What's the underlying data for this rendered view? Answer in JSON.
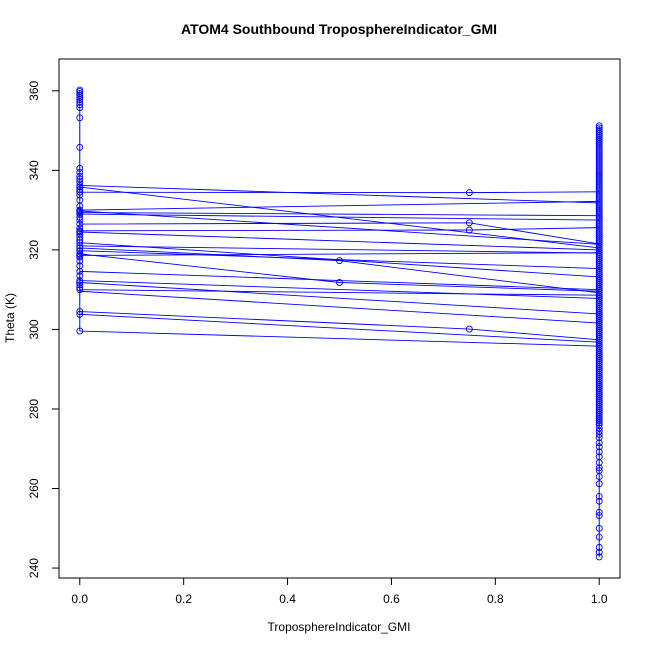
{
  "chart_data": {
    "type": "line",
    "title": "ATOM4 Southbound TroposphereIndicator_GMI",
    "xlabel": "TroposphereIndicator_GMI",
    "ylabel": "Theta (K)",
    "xlim": [
      -0.04,
      1.04
    ],
    "ylim": [
      237.5,
      368
    ],
    "x_ticks": [
      0.0,
      0.2,
      0.4,
      0.6,
      0.8,
      1.0
    ],
    "x_tick_labels": [
      "0.0",
      "0.2",
      "0.4",
      "0.6",
      "0.8",
      "1.0"
    ],
    "y_ticks": [
      240,
      260,
      280,
      300,
      320,
      340,
      360
    ],
    "y_tick_labels": [
      "240",
      "260",
      "280",
      "300",
      "320",
      "340",
      "360"
    ],
    "grid": false,
    "marker": "open-circle",
    "series_color": "#0000ff",
    "vertical_line_color": "#0000ff",
    "segments": [
      {
        "x": [
          0,
          1
        ],
        "y": [
          336.2,
          331.8
        ]
      },
      {
        "x": [
          0,
          1
        ],
        "y": [
          335.8,
          320.5
        ]
      },
      {
        "x": [
          0,
          0.75,
          1
        ],
        "y": [
          334.5,
          334.4,
          334.6
        ]
      },
      {
        "x": [
          0,
          1
        ],
        "y": [
          330.0,
          332.2
        ]
      },
      {
        "x": [
          0,
          1
        ],
        "y": [
          329.8,
          321.4
        ]
      },
      {
        "x": [
          0,
          1
        ],
        "y": [
          329.4,
          328.6
        ]
      },
      {
        "x": [
          0,
          1
        ],
        "y": [
          329.0,
          327.5
        ]
      },
      {
        "x": [
          0,
          0.75,
          1
        ],
        "y": [
          326.5,
          326.8,
          321.5
        ]
      },
      {
        "x": [
          0,
          0.75,
          1
        ],
        "y": [
          324.8,
          325.0,
          325.6
        ]
      },
      {
        "x": [
          0,
          1
        ],
        "y": [
          324.5,
          320.0
        ]
      },
      {
        "x": [
          0,
          1
        ],
        "y": [
          321.8,
          313.2
        ]
      },
      {
        "x": [
          0,
          1
        ],
        "y": [
          321.0,
          319.2
        ]
      },
      {
        "x": [
          0,
          0.5,
          1
        ],
        "y": [
          320.5,
          317.3,
          309.2
        ]
      },
      {
        "x": [
          0,
          1
        ],
        "y": [
          319.8,
          315.3
        ]
      },
      {
        "x": [
          0,
          0.5,
          1
        ],
        "y": [
          319.0,
          311.8,
          309.6
        ]
      },
      {
        "x": [
          0,
          1
        ],
        "y": [
          318.6,
          319.3
        ]
      },
      {
        "x": [
          0,
          1
        ],
        "y": [
          314.6,
          310.0
        ]
      },
      {
        "x": [
          0,
          1
        ],
        "y": [
          312.3,
          307.8
        ]
      },
      {
        "x": [
          0,
          1
        ],
        "y": [
          311.8,
          303.9
        ]
      },
      {
        "x": [
          0,
          1
        ],
        "y": [
          310.0,
          308.6
        ]
      },
      {
        "x": [
          0,
          1
        ],
        "y": [
          309.6,
          301.6
        ]
      },
      {
        "x": [
          0,
          0.75,
          1
        ],
        "y": [
          304.5,
          300.1,
          297.4
        ]
      },
      {
        "x": [
          0,
          1
        ],
        "y": [
          303.8,
          296.8
        ]
      },
      {
        "x": [
          0,
          1
        ],
        "y": [
          299.6,
          295.8
        ]
      }
    ],
    "points_x0": [
      299.6,
      303.8,
      304.5,
      310.0,
      310.5,
      311.2,
      311.8,
      312.3,
      313.5,
      314.6,
      316.0,
      317.2,
      318.2,
      318.6,
      319.0,
      319.8,
      320.5,
      321.0,
      321.8,
      322.5,
      323.2,
      324.0,
      324.5,
      324.8,
      325.5,
      326.5,
      327.5,
      328.2,
      329.0,
      329.4,
      329.8,
      330.0,
      331.0,
      332.5,
      333.8,
      334.5,
      335.2,
      335.8,
      336.2,
      337.0,
      337.8,
      338.5,
      339.5,
      340.5,
      345.8,
      353.2,
      355.8,
      356.5,
      357.2,
      357.8,
      358.3,
      358.8,
      359.3,
      359.8,
      360.2
    ],
    "points_x1_min": 242.8,
    "points_x1_max": 351.2,
    "points_x1_sparse": [
      242.8,
      244.0,
      245.2,
      247.8,
      250.0,
      253.2,
      254.0,
      256.8,
      258.0,
      261.2,
      263.0,
      264.5,
      265.2,
      266.5,
      268.0,
      269.2,
      270.5,
      271.5,
      272.8,
      273.6,
      274.4,
      275.2
    ],
    "points_x1_count_dense": 150,
    "points_x1_dense_range": [
      276,
      351.2
    ],
    "points_mid": [
      {
        "x": 0.5,
        "y": 317.3
      },
      {
        "x": 0.5,
        "y": 311.8
      },
      {
        "x": 0.75,
        "y": 334.4
      },
      {
        "x": 0.75,
        "y": 326.8
      },
      {
        "x": 0.75,
        "y": 325.0
      },
      {
        "x": 0.75,
        "y": 300.1
      }
    ]
  }
}
